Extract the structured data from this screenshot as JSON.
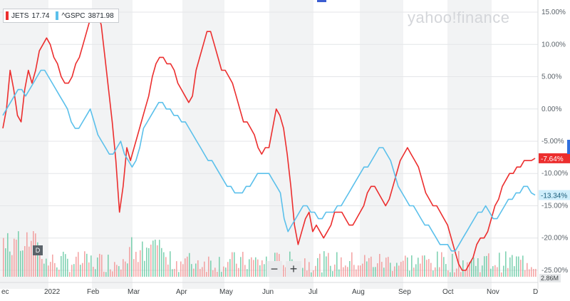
{
  "legend": [
    {
      "symbol": "JETS",
      "value": "17.74",
      "color": "#ec2e2e"
    },
    {
      "symbol": "^GSPC",
      "value": "3871.98",
      "color": "#5bc0eb"
    }
  ],
  "watermark": "yahoo!finance",
  "controls": {
    "zoom_out": "−",
    "zoom_in": "+",
    "period_label": "D"
  },
  "volume_label": "2.86M",
  "colors": {
    "jets": "#ec2e2e",
    "gspc": "#5bc0eb",
    "volume_up": "#57c49a",
    "volume_down": "#f28a8a"
  },
  "chart_data": {
    "type": "line",
    "y_unit": "percent",
    "ylim": [
      -26,
      16
    ],
    "y_ticks": [
      {
        "value": 15,
        "label": "15.00%"
      },
      {
        "value": 10,
        "label": "10.00%"
      },
      {
        "value": 5,
        "label": "5.00%"
      },
      {
        "value": 0,
        "label": "0.00%"
      },
      {
        "value": -5,
        "label": "-5.00%"
      },
      {
        "value": -10,
        "label": "-10.00%"
      },
      {
        "value": -15,
        "label": "-15.00%"
      },
      {
        "value": -20,
        "label": "-20.00%"
      },
      {
        "value": -25,
        "label": "-25.00%"
      }
    ],
    "x_ticks": [
      "ec",
      "2022",
      "Feb",
      "Mar",
      "Apr",
      "May",
      "Jun",
      "Jul",
      "Aug",
      "Sep",
      "Oct",
      "Nov",
      "D"
    ],
    "last_values": {
      "JETS": "-7.64%",
      "^GSPC": "-13.34%"
    },
    "series": [
      {
        "name": "JETS",
        "values": [
          -3,
          0,
          6,
          3,
          -1,
          -2,
          3,
          6,
          4,
          6,
          9,
          10,
          11,
          10,
          8,
          7,
          5,
          4,
          4,
          5,
          7,
          8,
          10,
          12,
          14,
          15,
          15,
          13,
          8,
          3,
          -2,
          -8,
          -16,
          -12,
          -6,
          -8,
          -6,
          -4,
          -2,
          0,
          2,
          5,
          7,
          8,
          8,
          7,
          7,
          6,
          4,
          3,
          2,
          1,
          2,
          6,
          8,
          10,
          12,
          12,
          10,
          8,
          6,
          6,
          5,
          4,
          2,
          0,
          -2,
          -2,
          -3,
          -4,
          -6,
          -7,
          -6,
          -6,
          -3,
          0,
          -1,
          -3,
          -7,
          -12,
          -18,
          -21,
          -19,
          -17,
          -16,
          -19,
          -18,
          -19,
          -20,
          -19,
          -18,
          -16,
          -16,
          -16,
          -17,
          -18,
          -18,
          -17,
          -16,
          -15,
          -13,
          -12,
          -12,
          -13,
          -14,
          -15,
          -14,
          -12,
          -10,
          -8,
          -7,
          -6,
          -7,
          -8,
          -9,
          -11,
          -13,
          -14,
          -15,
          -15,
          -16,
          -17,
          -18,
          -20,
          -22,
          -24,
          -25,
          -25,
          -24,
          -23,
          -21,
          -20,
          -20,
          -19,
          -17,
          -15,
          -14,
          -12,
          -11,
          -10,
          -10,
          -9,
          -9,
          -8,
          -8,
          -8,
          -7.64
        ]
      },
      {
        "name": "^GSPC",
        "values": [
          -1,
          0,
          1,
          2,
          3,
          3,
          2,
          3,
          4,
          5,
          6,
          6,
          5,
          4,
          3,
          2,
          1,
          0,
          -2,
          -3,
          -3,
          -2,
          -1,
          0,
          -2,
          -4,
          -5,
          -6,
          -7,
          -7,
          -6,
          -5,
          -7,
          -8,
          -9,
          -8,
          -6,
          -3,
          -2,
          -1,
          0,
          1,
          1,
          0,
          0,
          -1,
          -1,
          -2,
          -2,
          -3,
          -4,
          -5,
          -6,
          -7,
          -8,
          -8,
          -9,
          -10,
          -11,
          -12,
          -12,
          -13,
          -13,
          -13,
          -12,
          -12,
          -11,
          -10,
          -10,
          -10,
          -10,
          -11,
          -12,
          -13,
          -17,
          -19,
          -18,
          -17,
          -16,
          -15,
          -15,
          -16,
          -16,
          -17,
          -17,
          -16,
          -16,
          -16,
          -15,
          -15,
          -14,
          -13,
          -12,
          -11,
          -10,
          -9,
          -9,
          -8,
          -7,
          -6,
          -6,
          -7,
          -8,
          -10,
          -12,
          -13,
          -14,
          -15,
          -15,
          -16,
          -17,
          -18,
          -18,
          -19,
          -20,
          -21,
          -21,
          -21,
          -22,
          -22,
          -21,
          -20,
          -19,
          -18,
          -17,
          -16,
          -16,
          -15,
          -16,
          -17,
          -17,
          -16,
          -15,
          -14,
          -14,
          -13,
          -13,
          -12,
          -12,
          -13,
          -13.34
        ]
      }
    ]
  }
}
